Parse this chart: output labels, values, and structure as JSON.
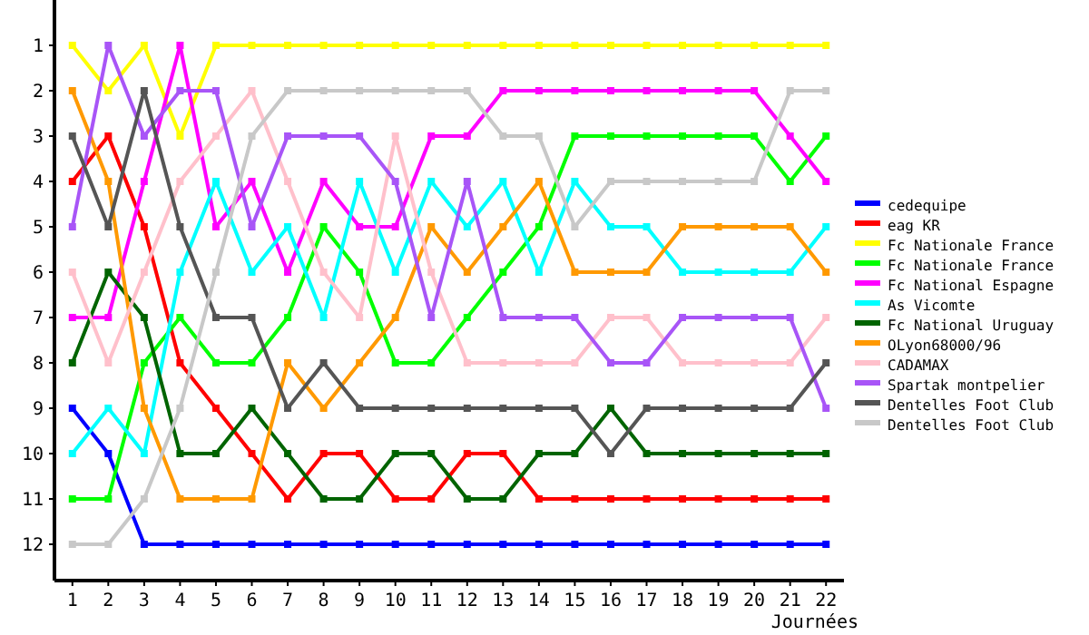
{
  "chart_data": {
    "type": "line",
    "xlabel": "Journées",
    "x": [
      1,
      2,
      3,
      4,
      5,
      6,
      7,
      8,
      9,
      10,
      11,
      12,
      13,
      14,
      15,
      16,
      17,
      18,
      19,
      20,
      21,
      22
    ],
    "xlim": [
      0.5,
      22.5
    ],
    "xticks": [
      1,
      2,
      3,
      4,
      5,
      6,
      7,
      8,
      9,
      10,
      11,
      12,
      13,
      14,
      15,
      16,
      17,
      18,
      19,
      20,
      21,
      22
    ],
    "ylim": [
      12.8,
      0
    ],
    "yticks": [
      1,
      2,
      3,
      4,
      5,
      6,
      7,
      8,
      9,
      10,
      11,
      12
    ],
    "grid": false,
    "legend": "right",
    "marker": "square",
    "line_style": "solid",
    "series": [
      {
        "name": "cedequipe",
        "color": "#0000ff",
        "values": [
          9,
          10,
          12,
          12,
          12,
          12,
          12,
          12,
          12,
          12,
          12,
          12,
          12,
          12,
          12,
          12,
          12,
          12,
          12,
          12,
          12,
          12
        ]
      },
      {
        "name": "eag KR",
        "color": "#ff0000",
        "values": [
          4,
          3,
          5,
          8,
          9,
          10,
          11,
          10,
          10,
          11,
          11,
          10,
          10,
          11,
          11,
          11,
          11,
          11,
          11,
          11,
          11,
          11
        ]
      },
      {
        "name": "Fc Nationale France",
        "color": "#ffff00",
        "values": [
          1,
          2,
          1,
          3,
          1,
          1,
          1,
          1,
          1,
          1,
          1,
          1,
          1,
          1,
          1,
          1,
          1,
          1,
          1,
          1,
          1,
          1
        ]
      },
      {
        "name": "Fc Nationale France",
        "color": "#00ff00",
        "values": [
          11,
          11,
          8,
          7,
          8,
          8,
          7,
          5,
          6,
          8,
          8,
          7,
          6,
          5,
          3,
          3,
          3,
          3,
          3,
          3,
          4,
          3
        ]
      },
      {
        "name": "Fc National Espagne",
        "color": "#ff00ff",
        "values": [
          7,
          7,
          4,
          1,
          5,
          4,
          6,
          4,
          5,
          5,
          3,
          3,
          2,
          2,
          2,
          2,
          2,
          2,
          2,
          2,
          3,
          4
        ]
      },
      {
        "name": "As Vicomte",
        "color": "#00ffff",
        "values": [
          10,
          9,
          10,
          6,
          4,
          6,
          5,
          7,
          4,
          6,
          4,
          5,
          4,
          6,
          4,
          5,
          5,
          6,
          6,
          6,
          6,
          5
        ]
      },
      {
        "name": "Fc National Uruguay",
        "color": "#006400",
        "values": [
          8,
          6,
          7,
          10,
          10,
          9,
          10,
          11,
          11,
          10,
          10,
          11,
          11,
          10,
          10,
          9,
          10,
          10,
          10,
          10,
          10,
          10
        ]
      },
      {
        "name": "OLyon68000/96",
        "color": "#ff9900",
        "values": [
          2,
          4,
          9,
          11,
          11,
          11,
          8,
          9,
          8,
          7,
          5,
          6,
          5,
          4,
          6,
          6,
          6,
          5,
          5,
          5,
          5,
          6
        ]
      },
      {
        "name": "CADAMAX",
        "color": "#ffc0cb",
        "values": [
          6,
          8,
          6,
          4,
          3,
          2,
          4,
          6,
          7,
          3,
          6,
          8,
          8,
          8,
          8,
          7,
          7,
          8,
          8,
          8,
          8,
          7
        ]
      },
      {
        "name": "Spartak montpelier",
        "color": "#a855f7",
        "values": [
          5,
          1,
          3,
          2,
          2,
          5,
          3,
          3,
          3,
          4,
          7,
          4,
          7,
          7,
          7,
          8,
          8,
          7,
          7,
          7,
          7,
          9
        ]
      },
      {
        "name": "Dentelles Foot Club",
        "color": "#555555",
        "values": [
          3,
          5,
          2,
          5,
          7,
          7,
          9,
          8,
          9,
          9,
          9,
          9,
          9,
          9,
          9,
          10,
          9,
          9,
          9,
          9,
          9,
          8
        ]
      },
      {
        "name": "Dentelles Foot Club",
        "color": "#c8c8c8",
        "values": [
          12,
          12,
          11,
          9,
          6,
          3,
          2,
          2,
          2,
          2,
          2,
          2,
          3,
          3,
          5,
          4,
          4,
          4,
          4,
          4,
          2,
          2
        ]
      }
    ]
  }
}
